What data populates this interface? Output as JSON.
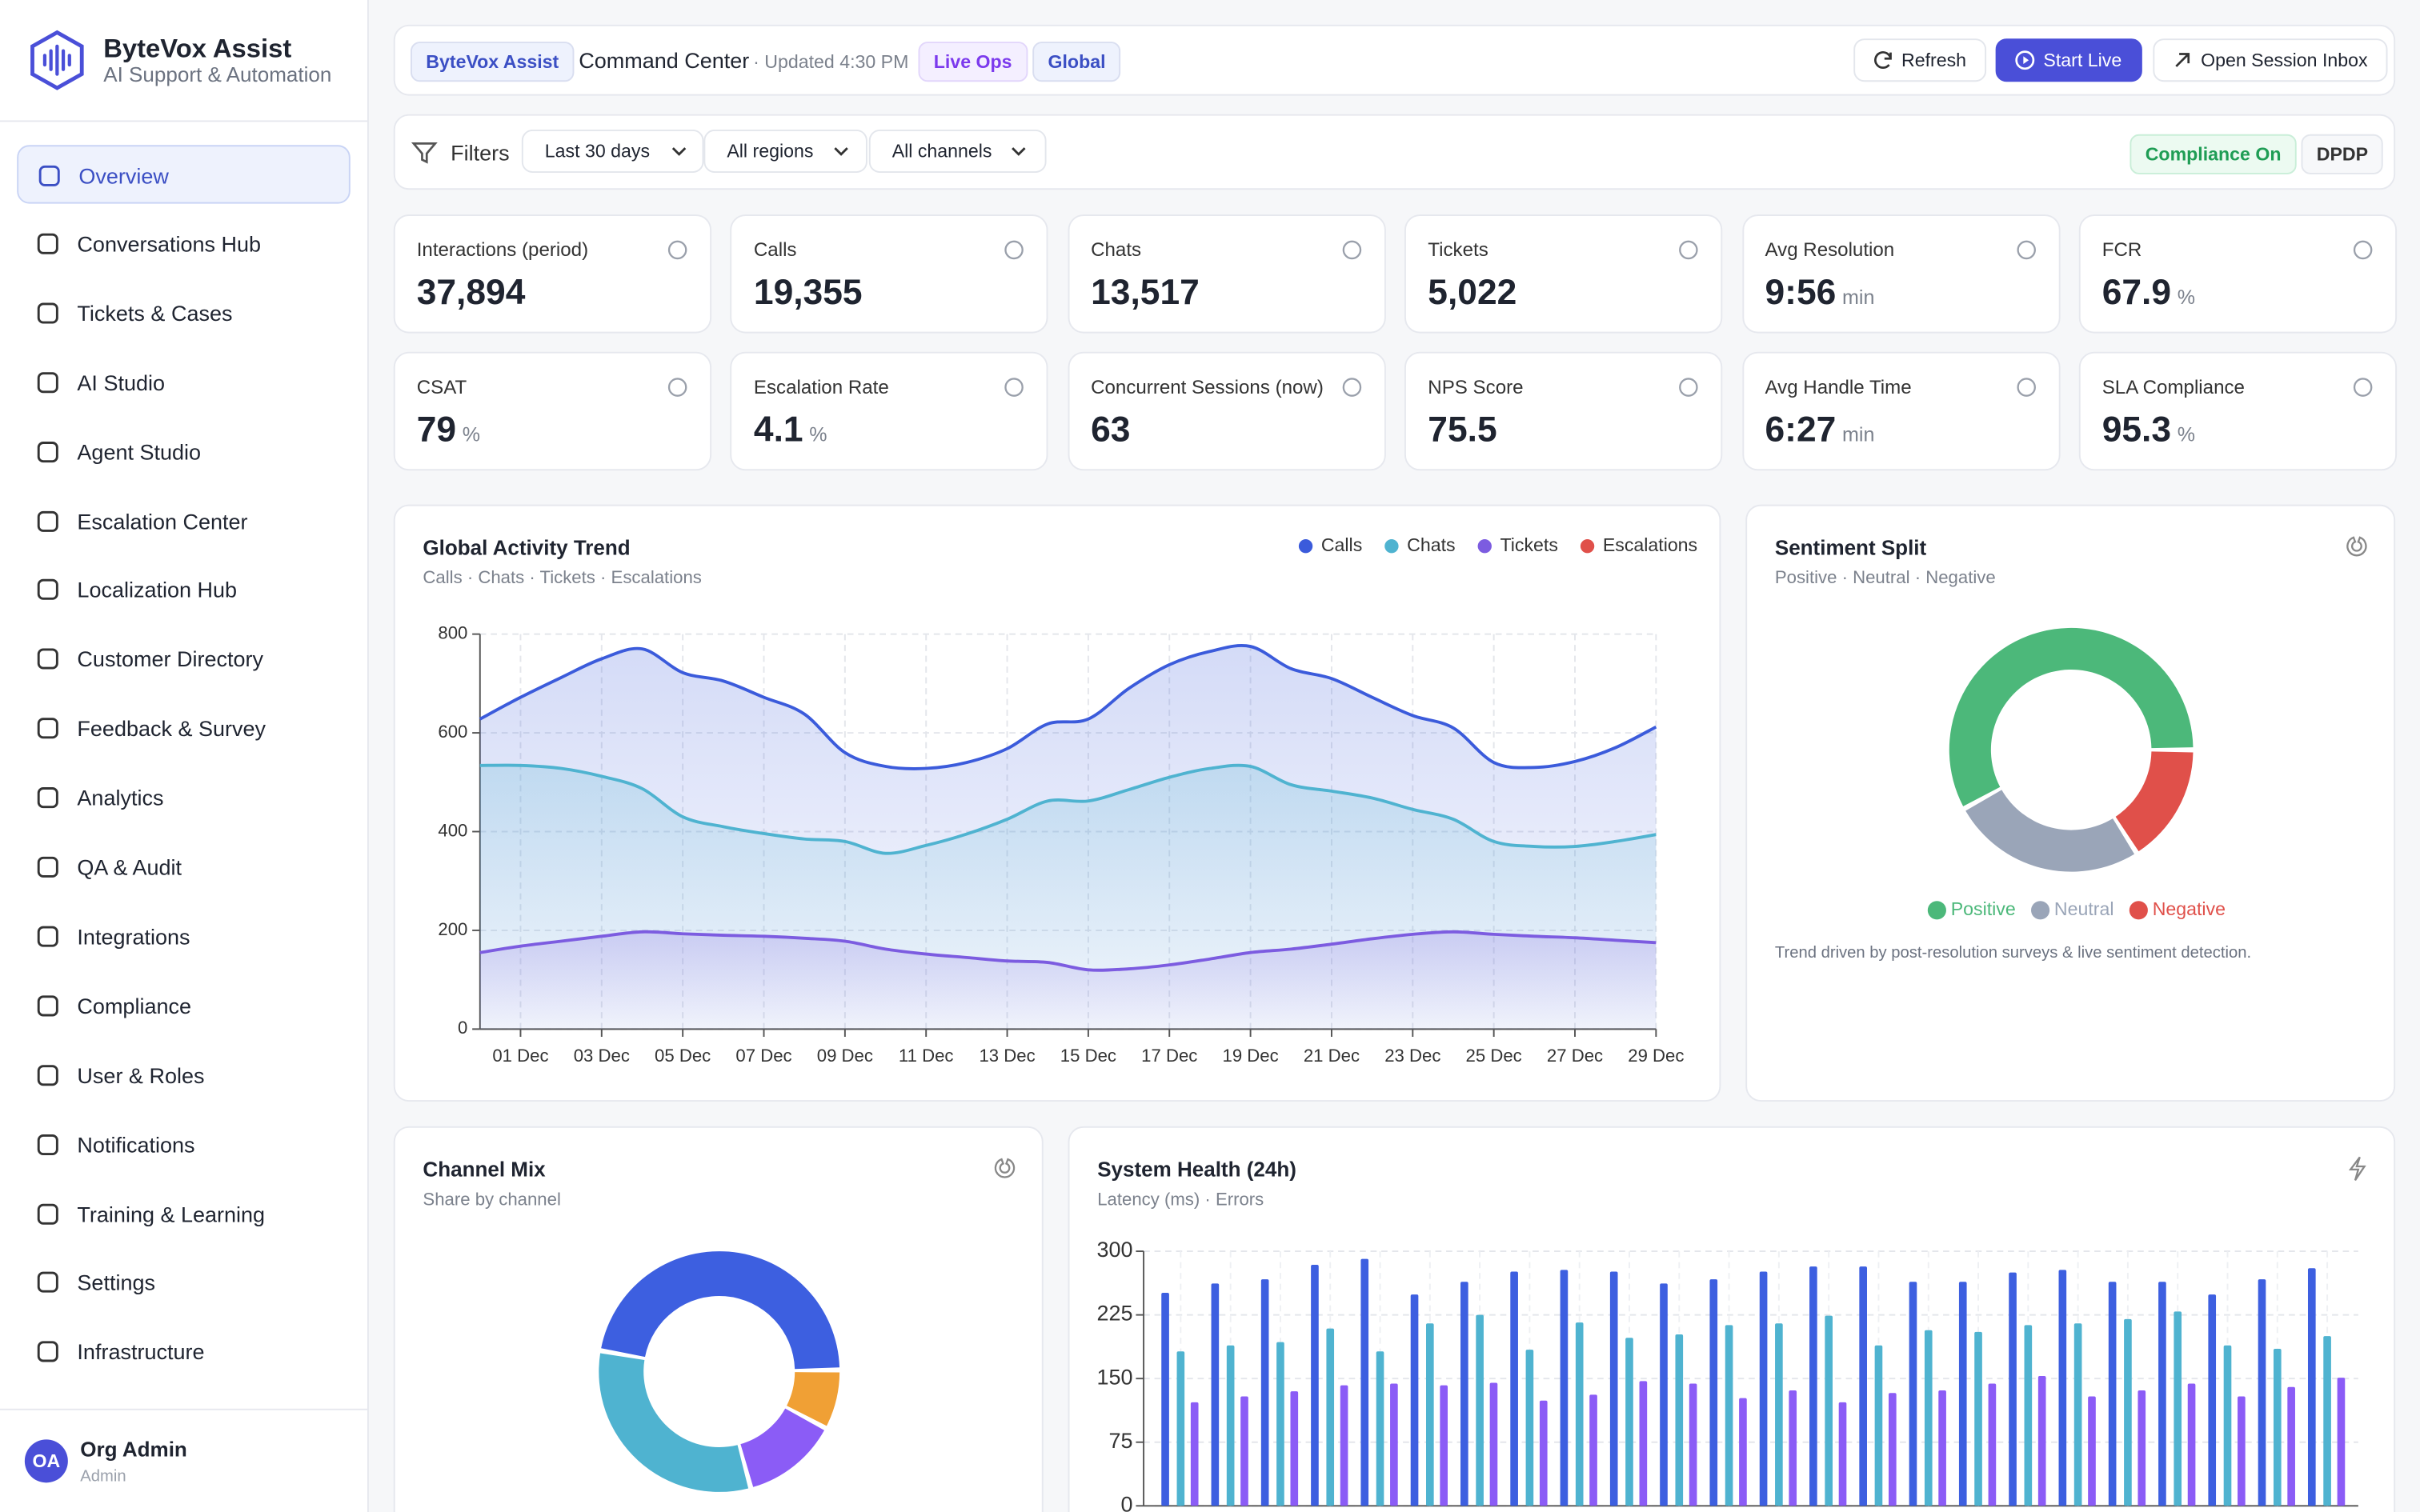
{
  "sidebar": {
    "brand": "ByteVox Assist",
    "tagline": "AI Support & Automation",
    "nav": [
      "Overview",
      "Conversations Hub",
      "Tickets & Cases",
      "AI Studio",
      "Agent Studio",
      "Escalation Center",
      "Localization Hub",
      "Customer Directory",
      "Feedback & Survey",
      "Analytics",
      "QA & Audit",
      "Integrations",
      "Compliance",
      "User & Roles",
      "Notifications",
      "Training & Learning",
      "Settings",
      "Infrastructure"
    ],
    "user": {
      "initials": "OA",
      "name": "Org Admin",
      "role": "Admin"
    }
  },
  "header": {
    "badge": "ByteVox Assist",
    "title": "Command Center",
    "updated": "· Updated 4:30 PM",
    "tags": [
      "Live Ops",
      "Global"
    ],
    "buttons": [
      "Refresh",
      "Start Live",
      "Open Session Inbox"
    ]
  },
  "filters": {
    "label": "Filters",
    "selects": [
      "Last 30 days",
      "All regions",
      "All channels"
    ],
    "badges": [
      "Compliance On",
      "DPDP"
    ]
  },
  "kpis": [
    {
      "label": "Interactions (period)",
      "value": "37,894"
    },
    {
      "label": "Calls",
      "value": "19,355"
    },
    {
      "label": "Chats",
      "value": "13,517"
    },
    {
      "label": "Tickets",
      "value": "5,022"
    },
    {
      "label": "Avg Resolution",
      "value": "9:56",
      "unit": "min"
    },
    {
      "label": "FCR",
      "value": "67.9",
      "unit": "%"
    },
    {
      "label": "CSAT",
      "value": "79",
      "unit": "%"
    },
    {
      "label": "Escalation Rate",
      "value": "4.1",
      "unit": "%"
    },
    {
      "label": "Concurrent Sessions (now)",
      "value": "63"
    },
    {
      "label": "NPS Score",
      "value": "75.5"
    },
    {
      "label": "Avg Handle Time",
      "value": "6:27",
      "unit": "min"
    },
    {
      "label": "SLA Compliance",
      "value": "95.3",
      "unit": "%"
    }
  ],
  "chart_data": [
    {
      "type": "area",
      "title": "Global Activity Trend",
      "subtitle": "Calls · Chats · Tickets · Escalations",
      "categories": [
        null,
        "01 Dec",
        null,
        "03 Dec",
        null,
        "05 Dec",
        null,
        "07 Dec",
        null,
        "09 Dec",
        null,
        "11 Dec",
        null,
        "13 Dec",
        null,
        "15 Dec",
        null,
        "17 Dec",
        null,
        "19 Dec",
        null,
        "21 Dec",
        null,
        "23 Dec",
        null,
        "25 Dec",
        null,
        "27 Dec",
        null,
        "29 Dec"
      ],
      "series": [
        {
          "name": "Calls",
          "color": "#3b5bdb",
          "values": [
            628,
            672,
            712,
            750,
            770,
            722,
            705,
            672,
            638,
            560,
            532,
            528,
            540,
            568,
            618,
            628,
            690,
            738,
            765,
            775,
            730,
            710,
            672,
            635,
            610,
            540,
            530,
            542,
            570,
            612
          ]
        },
        {
          "name": "Chats",
          "color": "#4fb3d0",
          "values": [
            534,
            534,
            528,
            512,
            487,
            430,
            410,
            396,
            385,
            380,
            356,
            372,
            395,
            425,
            462,
            462,
            485,
            510,
            528,
            532,
            495,
            482,
            468,
            445,
            425,
            380,
            370,
            370,
            380,
            394
          ]
        },
        {
          "name": "Tickets",
          "color": "#7c5ce0",
          "values": [
            155,
            168,
            178,
            188,
            197,
            193,
            190,
            188,
            184,
            178,
            162,
            152,
            145,
            138,
            135,
            120,
            122,
            130,
            142,
            155,
            162,
            172,
            183,
            192,
            197,
            192,
            188,
            185,
            180,
            175
          ]
        },
        {
          "name": "Escalations",
          "color": "#e0504a",
          "values": [
            null,
            null,
            null,
            null,
            null,
            null,
            null,
            null,
            null,
            null,
            null,
            null,
            null,
            null,
            null,
            null,
            null,
            null,
            null,
            null,
            null,
            null,
            null,
            null,
            null,
            null,
            null,
            null,
            null,
            null
          ]
        }
      ],
      "ylim": [
        0,
        800
      ],
      "yticks": [
        0,
        200,
        400,
        600,
        800
      ],
      "grid": true
    },
    {
      "type": "donut",
      "title": "Sentiment Split",
      "subtitle": "Positive · Neutral · Negative",
      "categories": [
        "Positive",
        "Neutral",
        "Negative"
      ],
      "values": [
        58,
        26,
        16
      ],
      "colors": [
        "#4cb87a",
        "#9aa5b8",
        "#e0504a"
      ],
      "note": "Trend driven by post-resolution surveys & live sentiment detection."
    },
    {
      "type": "donut",
      "title": "Channel Mix",
      "subtitle": "Share by channel",
      "values": [
        47,
        8,
        13,
        32
      ],
      "colors": [
        "#3d5fe0",
        "#f0a035",
        "#8b5cf6",
        "#4fb3d0"
      ]
    },
    {
      "type": "bar",
      "title": "System Health (24h)",
      "subtitle": "Latency (ms) · Errors",
      "series": [
        {
          "color": "#3d5fe0",
          "values": [
            251,
            262,
            267,
            284,
            291,
            249,
            264,
            276,
            278,
            276,
            262,
            267,
            276,
            282,
            282,
            264,
            264,
            275,
            278,
            264,
            264,
            249,
            267,
            280
          ]
        },
        {
          "color": "#4fb3d0",
          "values": [
            182,
            189,
            193,
            209,
            182,
            215,
            225,
            184,
            216,
            198,
            202,
            213,
            215,
            224,
            189,
            207,
            205,
            213,
            215,
            220,
            229,
            189,
            185,
            200
          ]
        },
        {
          "color": "#8b5cf6",
          "values": [
            122,
            129,
            135,
            142,
            144,
            142,
            145,
            124,
            131,
            147,
            144,
            127,
            136,
            122,
            133,
            136,
            144,
            153,
            129,
            136,
            144,
            129,
            140,
            151
          ]
        }
      ],
      "ylim": [
        0,
        300
      ],
      "yticks": [
        0,
        75,
        150,
        225,
        300
      ],
      "grid": true
    }
  ]
}
